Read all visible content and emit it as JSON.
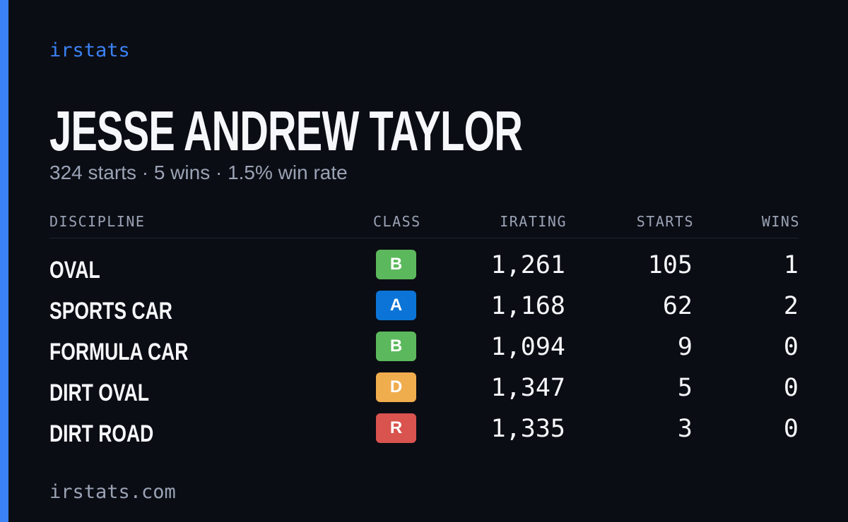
{
  "brand": "irstats",
  "driver": {
    "name": "JESSE ANDREW TAYLOR",
    "summary": "324 starts · 5 wins · 1.5% win rate"
  },
  "table": {
    "headers": [
      "DISCIPLINE",
      "CLASS",
      "IRATING",
      "STARTS",
      "WINS"
    ],
    "rows": [
      {
        "discipline": "OVAL",
        "class": "B",
        "class_color": "#5cb85c",
        "irating": "1,261",
        "starts": "105",
        "wins": "1"
      },
      {
        "discipline": "SPORTS CAR",
        "class": "A",
        "class_color": "#0b74d6",
        "irating": "1,168",
        "starts": "62",
        "wins": "2"
      },
      {
        "discipline": "FORMULA CAR",
        "class": "B",
        "class_color": "#5cb85c",
        "irating": "1,094",
        "starts": "9",
        "wins": "0"
      },
      {
        "discipline": "DIRT OVAL",
        "class": "D",
        "class_color": "#f0ad4e",
        "irating": "1,347",
        "starts": "5",
        "wins": "0"
      },
      {
        "discipline": "DIRT ROAD",
        "class": "R",
        "class_color": "#d9534f",
        "irating": "1,335",
        "starts": "3",
        "wins": "0"
      }
    ]
  },
  "footer": "irstats.com"
}
